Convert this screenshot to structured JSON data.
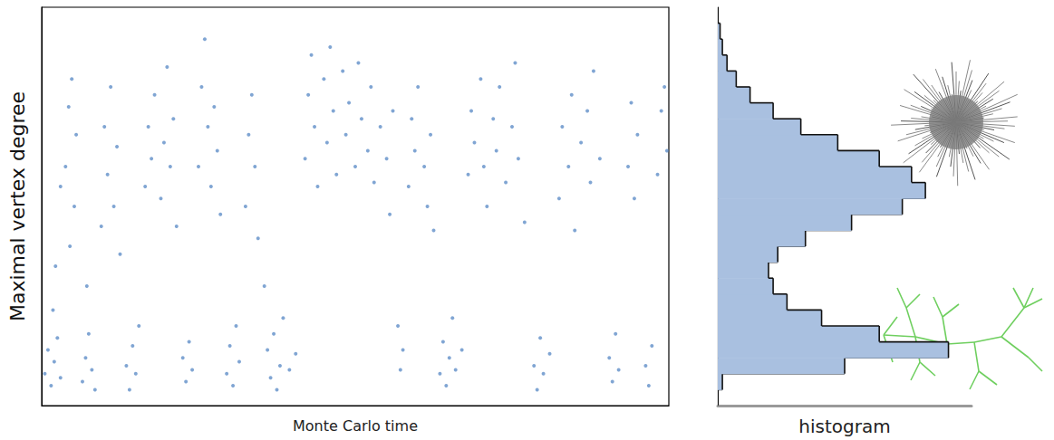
{
  "chart_data": [
    {
      "type": "scatter",
      "xlabel": "Monte Carlo time",
      "ylabel": "Maximal vertex degree",
      "xlim": [
        0,
        100
      ],
      "ylim": [
        0,
        100
      ],
      "tick_labels": false,
      "grid": false,
      "color": "#4a7fc1",
      "marker": "circle",
      "x": [
        0.5,
        1,
        1.5,
        2,
        2.5,
        3,
        2.2,
        3,
        1.8,
        3.8,
        4.3,
        4.8,
        5.2,
        5.5,
        4.5,
        6.5,
        7,
        7.5,
        8,
        8.5,
        7.2,
        9.5,
        10,
        10.5,
        11,
        11.5,
        12,
        12.5,
        13.5,
        14,
        14.5,
        15,
        15.5,
        16.5,
        17,
        17.5,
        18,
        19,
        19.5,
        20,
        20.5,
        21,
        21.5,
        22.5,
        23,
        23.5,
        24,
        25,
        25.5,
        26,
        26.5,
        27,
        27.5,
        28,
        28.5,
        29.5,
        30,
        30.5,
        31,
        31.5,
        32.5,
        33,
        33.5,
        34,
        34.5,
        35.5,
        36,
        36.5,
        37,
        37.5,
        38,
        38.5,
        39.5,
        40.5,
        42,
        42.5,
        43,
        43.5,
        44,
        45,
        45.5,
        46,
        46.5,
        47,
        48,
        48.5,
        49,
        50,
        50.5,
        51,
        52,
        52.5,
        53,
        54,
        55,
        55.5,
        56,
        56.8,
        57.2,
        57.6,
        58.5,
        59,
        59.5,
        60,
        61,
        61.5,
        62,
        62.5,
        63.5,
        64,
        64.5,
        65,
        65.5,
        66,
        67,
        68,
        68.5,
        69,
        70,
        70.5,
        71,
        72,
        72.5,
        73,
        74,
        75,
        75.5,
        76,
        77,
        78.5,
        79,
        79.5,
        80,
        81,
        82.5,
        83,
        84,
        84.5,
        85,
        86,
        87,
        87.5,
        88,
        89,
        90.5,
        91,
        91.5,
        92,
        93.5,
        94,
        94.5,
        95,
        96.3,
        96.8,
        97.3,
        98.2,
        98.8,
        99.3,
        99.7
      ],
      "values": [
        8,
        14,
        5,
        11,
        17,
        7,
        35,
        55,
        24,
        60,
        75,
        82,
        50,
        68,
        40,
        6,
        12,
        18,
        9,
        4,
        30,
        45,
        70,
        58,
        80,
        50,
        65,
        38,
        10,
        4,
        15,
        8,
        20,
        55,
        70,
        62,
        78,
        52,
        66,
        85,
        60,
        72,
        45,
        12,
        6,
        16,
        9,
        60,
        80,
        92,
        70,
        55,
        75,
        64,
        48,
        8,
        15,
        5,
        20,
        11,
        50,
        68,
        78,
        60,
        42,
        30,
        14,
        7,
        18,
        4,
        10,
        22,
        9,
        13,
        62,
        78,
        88,
        70,
        55,
        82,
        66,
        90,
        74,
        58,
        84,
        68,
        76,
        60,
        86,
        72,
        64,
        80,
        56,
        70,
        62,
        48,
        74,
        20,
        9,
        14,
        55,
        72,
        64,
        80,
        60,
        50,
        68,
        44,
        8,
        16,
        5,
        12,
        22,
        9,
        14,
        58,
        74,
        66,
        82,
        60,
        50,
        72,
        64,
        80,
        56,
        70,
        86,
        62,
        46,
        10,
        4,
        17,
        8,
        13,
        52,
        70,
        60,
        78,
        44,
        66,
        74,
        56,
        84,
        62,
        12,
        6,
        18,
        9,
        60,
        76,
        52,
        68,
        10,
        5,
        15,
        58,
        74,
        80,
        64
      ]
    },
    {
      "type": "histogram",
      "xlabel": "histogram",
      "orientation": "horizontal",
      "xlim": [
        0,
        110
      ],
      "ylim": [
        0,
        100
      ],
      "tick_labels": false,
      "grid": false,
      "color": "#a9c0e0",
      "bins": [
        0,
        4,
        8,
        12,
        16,
        20,
        24,
        28,
        32,
        36,
        40,
        44,
        48,
        52,
        56,
        60,
        64,
        68,
        72,
        76,
        80,
        84,
        88,
        92,
        96,
        100
      ],
      "counts": [
        0,
        2,
        55,
        100,
        70,
        45,
        30,
        24,
        22,
        26,
        38,
        58,
        80,
        90,
        84,
        70,
        52,
        36,
        24,
        14,
        8,
        4,
        2,
        1,
        0
      ]
    }
  ]
}
